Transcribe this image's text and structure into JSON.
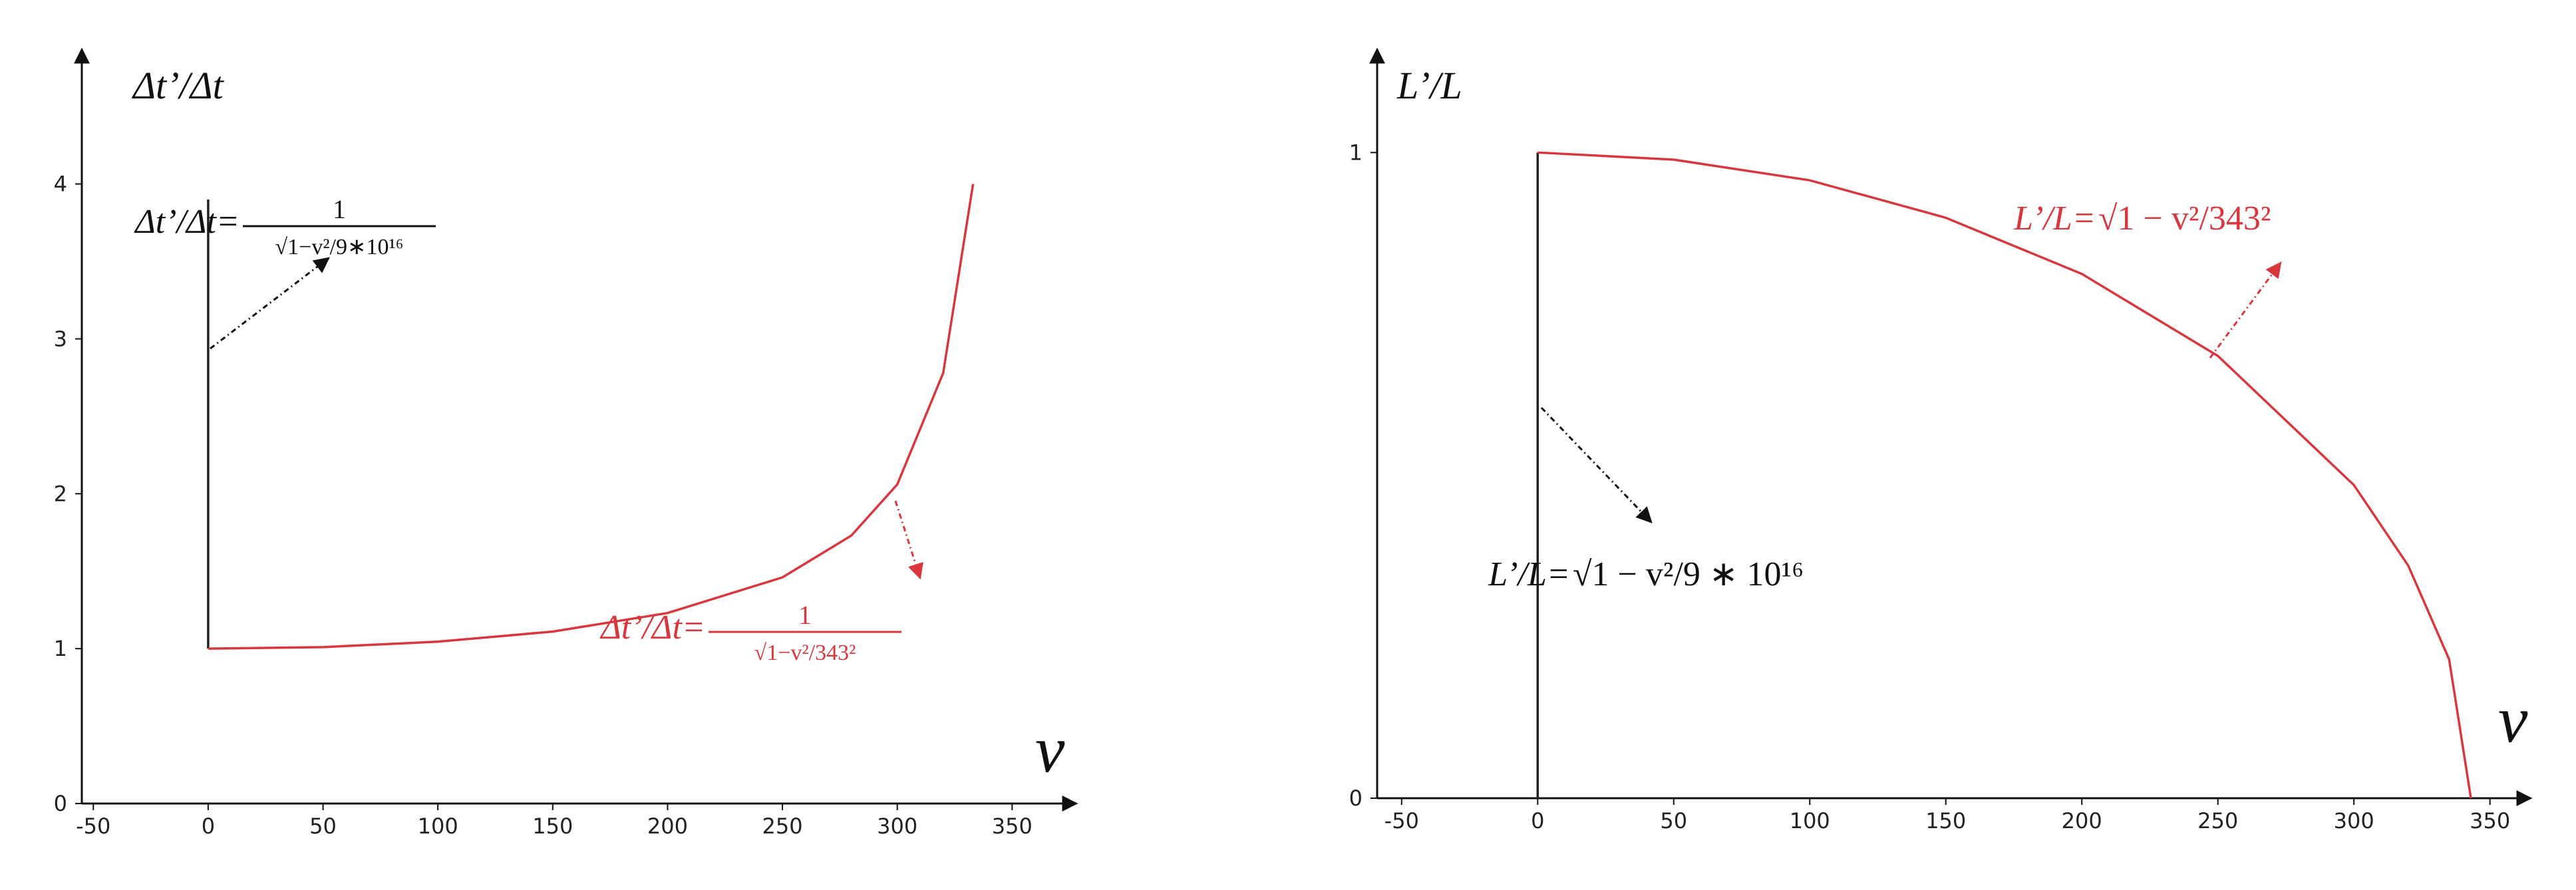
{
  "chart_data": [
    {
      "type": "line",
      "y_label": "Δt’/Δt",
      "x_label": "v",
      "xlim": [
        -55,
        378
      ],
      "ylim": [
        0,
        4.87
      ],
      "xticks": [
        -50,
        0,
        50,
        100,
        150,
        200,
        250,
        300,
        350
      ],
      "yticks": [
        0,
        1,
        2,
        3,
        4
      ],
      "series": [
        {
          "color": "#222222",
          "x": [
            0,
            0
          ],
          "values": [
            1,
            3.9
          ]
        },
        {
          "color": "#d9363e",
          "x": [
            0,
            50,
            100,
            150,
            200,
            250,
            280,
            300,
            320,
            333
          ],
          "values": [
            1,
            1.01,
            1.045,
            1.11,
            1.23,
            1.46,
            1.73,
            2.06,
            2.78,
            4.0
          ]
        }
      ],
      "annotations": [
        {
          "lhs": "Δt’/Δt=",
          "numerator": "1",
          "denominator": "√1−v²/9∗10¹⁶",
          "color": "#111111"
        },
        {
          "lhs": "Δt’/Δt=",
          "numerator": "1",
          "denominator": "√1−v²/343²",
          "color": "#d9363e"
        }
      ]
    },
    {
      "type": "line",
      "y_label": "L’/L",
      "x_label": "v",
      "xlim": [
        -59,
        365
      ],
      "ylim": [
        0,
        1.16
      ],
      "xticks": [
        -50,
        0,
        50,
        100,
        150,
        200,
        250,
        300,
        350
      ],
      "yticks": [
        0,
        1
      ],
      "series": [
        {
          "color": "#222222",
          "x": [
            0,
            0
          ],
          "values": [
            0,
            1
          ]
        },
        {
          "color": "#d9363e",
          "x": [
            0,
            50,
            100,
            150,
            200,
            250,
            300,
            320,
            335,
            343
          ],
          "values": [
            1,
            0.989,
            0.957,
            0.899,
            0.812,
            0.685,
            0.485,
            0.36,
            0.215,
            0
          ]
        }
      ],
      "annotations": [
        {
          "lhs": "L’/L=",
          "expr": "√1 − v²/9 ∗ 10¹⁶",
          "color": "#111111"
        },
        {
          "lhs": "L’/L=",
          "expr": "√1 − v²/343²",
          "color": "#d9363e"
        }
      ]
    }
  ]
}
